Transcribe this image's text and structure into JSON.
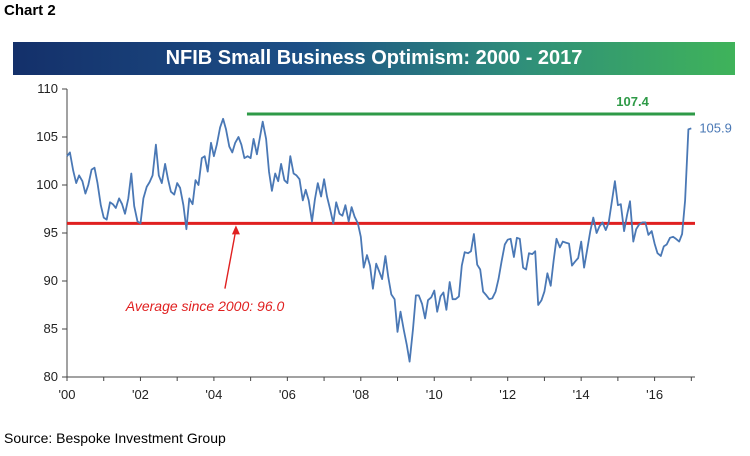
{
  "figure_label": "Chart 2",
  "source": "Source: Bespoke Investment Group",
  "chart_data": {
    "type": "line",
    "title": "NFIB Small Business Optimism: 2000 - 2017",
    "xlabel": "",
    "ylabel": "",
    "xlim": [
      2000,
      2017.1
    ],
    "ylim": [
      80,
      110
    ],
    "x_ticks": [
      {
        "value": 2000,
        "label": "'00"
      },
      {
        "value": 2002,
        "label": "'02"
      },
      {
        "value": 2004,
        "label": "'04"
      },
      {
        "value": 2006,
        "label": "'06"
      },
      {
        "value": 2008,
        "label": "'08"
      },
      {
        "value": 2010,
        "label": "'10"
      },
      {
        "value": 2012,
        "label": "'12"
      },
      {
        "value": 2014,
        "label": "'14"
      },
      {
        "value": 2016,
        "label": "'16"
      }
    ],
    "y_ticks": [
      80,
      85,
      90,
      95,
      100,
      105,
      110
    ],
    "colors": {
      "series": "#4a78b5",
      "average": "#e02020",
      "peak": "#2e9a47"
    },
    "series": [
      {
        "name": "NFIB Small Business Optimism Index",
        "points": [
          [
            2000.0,
            103.0
          ],
          [
            2000.08,
            103.4
          ],
          [
            2000.17,
            101.5
          ],
          [
            2000.25,
            100.2
          ],
          [
            2000.33,
            101.0
          ],
          [
            2000.42,
            100.4
          ],
          [
            2000.5,
            99.1
          ],
          [
            2000.58,
            100.0
          ],
          [
            2000.67,
            101.6
          ],
          [
            2000.75,
            101.8
          ],
          [
            2000.83,
            100.2
          ],
          [
            2000.92,
            97.9
          ],
          [
            2001.0,
            96.6
          ],
          [
            2001.08,
            96.4
          ],
          [
            2001.17,
            98.2
          ],
          [
            2001.25,
            98.0
          ],
          [
            2001.33,
            97.6
          ],
          [
            2001.42,
            98.6
          ],
          [
            2001.5,
            98.0
          ],
          [
            2001.58,
            97.0
          ],
          [
            2001.67,
            98.6
          ],
          [
            2001.75,
            101.2
          ],
          [
            2001.83,
            97.8
          ],
          [
            2001.92,
            96.2
          ],
          [
            2002.0,
            96.0
          ],
          [
            2002.08,
            98.6
          ],
          [
            2002.17,
            99.8
          ],
          [
            2002.25,
            100.3
          ],
          [
            2002.33,
            101.0
          ],
          [
            2002.42,
            104.2
          ],
          [
            2002.5,
            101.0
          ],
          [
            2002.58,
            100.2
          ],
          [
            2002.67,
            102.2
          ],
          [
            2002.75,
            100.6
          ],
          [
            2002.83,
            99.3
          ],
          [
            2002.92,
            99.0
          ],
          [
            2003.0,
            100.2
          ],
          [
            2003.08,
            99.7
          ],
          [
            2003.17,
            97.9
          ],
          [
            2003.25,
            95.4
          ],
          [
            2003.33,
            98.6
          ],
          [
            2003.42,
            98.0
          ],
          [
            2003.5,
            100.5
          ],
          [
            2003.58,
            100.0
          ],
          [
            2003.67,
            102.8
          ],
          [
            2003.75,
            103.0
          ],
          [
            2003.83,
            101.4
          ],
          [
            2003.92,
            104.4
          ],
          [
            2004.0,
            103.0
          ],
          [
            2004.08,
            104.2
          ],
          [
            2004.17,
            106.0
          ],
          [
            2004.25,
            106.9
          ],
          [
            2004.33,
            105.8
          ],
          [
            2004.42,
            104.0
          ],
          [
            2004.5,
            103.4
          ],
          [
            2004.58,
            104.4
          ],
          [
            2004.67,
            105.0
          ],
          [
            2004.75,
            104.2
          ],
          [
            2004.83,
            102.8
          ],
          [
            2004.92,
            103.0
          ],
          [
            2005.0,
            102.8
          ],
          [
            2005.08,
            104.8
          ],
          [
            2005.17,
            103.2
          ],
          [
            2005.25,
            104.9
          ],
          [
            2005.33,
            106.6
          ],
          [
            2005.42,
            104.8
          ],
          [
            2005.5,
            101.4
          ],
          [
            2005.58,
            99.4
          ],
          [
            2005.67,
            101.2
          ],
          [
            2005.75,
            100.4
          ],
          [
            2005.83,
            102.2
          ],
          [
            2005.92,
            100.5
          ],
          [
            2006.0,
            100.2
          ],
          [
            2006.08,
            103.0
          ],
          [
            2006.17,
            101.2
          ],
          [
            2006.25,
            101.0
          ],
          [
            2006.33,
            100.6
          ],
          [
            2006.42,
            98.4
          ],
          [
            2006.5,
            99.5
          ],
          [
            2006.58,
            98.4
          ],
          [
            2006.67,
            96.2
          ],
          [
            2006.75,
            98.5
          ],
          [
            2006.83,
            100.2
          ],
          [
            2006.92,
            98.8
          ],
          [
            2007.0,
            100.6
          ],
          [
            2007.08,
            98.8
          ],
          [
            2007.17,
            97.4
          ],
          [
            2007.25,
            96.0
          ],
          [
            2007.33,
            98.2
          ],
          [
            2007.42,
            97.0
          ],
          [
            2007.5,
            96.8
          ],
          [
            2007.58,
            97.9
          ],
          [
            2007.67,
            96.2
          ],
          [
            2007.75,
            97.7
          ],
          [
            2007.83,
            96.7
          ],
          [
            2007.92,
            96.0
          ],
          [
            2008.0,
            94.6
          ],
          [
            2008.08,
            91.4
          ],
          [
            2008.17,
            92.7
          ],
          [
            2008.25,
            91.6
          ],
          [
            2008.33,
            89.2
          ],
          [
            2008.42,
            91.8
          ],
          [
            2008.5,
            91.0
          ],
          [
            2008.58,
            90.2
          ],
          [
            2008.67,
            92.6
          ],
          [
            2008.75,
            90.4
          ],
          [
            2008.83,
            88.6
          ],
          [
            2008.92,
            88.1
          ],
          [
            2009.0,
            84.7
          ],
          [
            2009.08,
            86.8
          ],
          [
            2009.17,
            84.9
          ],
          [
            2009.25,
            83.4
          ],
          [
            2009.33,
            81.6
          ],
          [
            2009.42,
            85.0
          ],
          [
            2009.5,
            88.5
          ],
          [
            2009.58,
            88.5
          ],
          [
            2009.67,
            87.6
          ],
          [
            2009.75,
            86.1
          ],
          [
            2009.83,
            88.0
          ],
          [
            2009.92,
            88.3
          ],
          [
            2010.0,
            89.0
          ],
          [
            2010.08,
            86.8
          ],
          [
            2010.17,
            88.4
          ],
          [
            2010.25,
            88.8
          ],
          [
            2010.33,
            87.0
          ],
          [
            2010.42,
            89.9
          ],
          [
            2010.5,
            88.1
          ],
          [
            2010.58,
            88.1
          ],
          [
            2010.67,
            88.4
          ],
          [
            2010.75,
            91.6
          ],
          [
            2010.83,
            93.0
          ],
          [
            2010.92,
            92.9
          ],
          [
            2011.0,
            93.1
          ],
          [
            2011.08,
            94.9
          ],
          [
            2011.17,
            91.7
          ],
          [
            2011.25,
            91.2
          ],
          [
            2011.33,
            88.9
          ],
          [
            2011.42,
            88.5
          ],
          [
            2011.5,
            88.1
          ],
          [
            2011.58,
            88.2
          ],
          [
            2011.67,
            88.9
          ],
          [
            2011.75,
            90.2
          ],
          [
            2011.83,
            92.0
          ],
          [
            2011.92,
            93.8
          ],
          [
            2012.0,
            94.3
          ],
          [
            2012.08,
            94.4
          ],
          [
            2012.17,
            92.5
          ],
          [
            2012.25,
            94.5
          ],
          [
            2012.33,
            94.4
          ],
          [
            2012.42,
            91.4
          ],
          [
            2012.5,
            91.2
          ],
          [
            2012.58,
            92.9
          ],
          [
            2012.67,
            92.8
          ],
          [
            2012.75,
            93.1
          ],
          [
            2012.83,
            87.5
          ],
          [
            2012.92,
            88.0
          ],
          [
            2013.0,
            88.9
          ],
          [
            2013.08,
            90.8
          ],
          [
            2013.17,
            89.5
          ],
          [
            2013.25,
            92.1
          ],
          [
            2013.33,
            94.4
          ],
          [
            2013.42,
            93.5
          ],
          [
            2013.5,
            94.1
          ],
          [
            2013.58,
            94.0
          ],
          [
            2013.67,
            93.9
          ],
          [
            2013.75,
            91.6
          ],
          [
            2013.83,
            92.0
          ],
          [
            2013.92,
            92.4
          ],
          [
            2014.0,
            94.1
          ],
          [
            2014.08,
            91.4
          ],
          [
            2014.17,
            93.4
          ],
          [
            2014.25,
            95.2
          ],
          [
            2014.33,
            96.6
          ],
          [
            2014.42,
            95.0
          ],
          [
            2014.5,
            95.7
          ],
          [
            2014.58,
            96.1
          ],
          [
            2014.67,
            95.3
          ],
          [
            2014.75,
            96.1
          ],
          [
            2014.83,
            98.1
          ],
          [
            2014.92,
            100.4
          ],
          [
            2015.0,
            97.9
          ],
          [
            2015.08,
            98.0
          ],
          [
            2015.17,
            95.2
          ],
          [
            2015.25,
            96.9
          ],
          [
            2015.33,
            98.3
          ],
          [
            2015.42,
            94.1
          ],
          [
            2015.5,
            95.4
          ],
          [
            2015.58,
            95.9
          ],
          [
            2015.67,
            96.1
          ],
          [
            2015.75,
            96.1
          ],
          [
            2015.83,
            94.8
          ],
          [
            2015.92,
            95.2
          ],
          [
            2016.0,
            93.9
          ],
          [
            2016.08,
            92.9
          ],
          [
            2016.17,
            92.6
          ],
          [
            2016.25,
            93.6
          ],
          [
            2016.33,
            93.8
          ],
          [
            2016.42,
            94.5
          ],
          [
            2016.5,
            94.6
          ],
          [
            2016.58,
            94.4
          ],
          [
            2016.67,
            94.1
          ],
          [
            2016.75,
            94.9
          ],
          [
            2016.83,
            98.4
          ],
          [
            2016.92,
            105.8
          ],
          [
            2017.0,
            105.9
          ]
        ]
      }
    ],
    "reference_lines": [
      {
        "name": "average",
        "value": 96.0,
        "label": "Average since 2000:  96.0",
        "x_start": 2000.0,
        "x_end": 2017.1
      },
      {
        "name": "peak",
        "value": 107.4,
        "label": "107.4",
        "x_start": 2004.9,
        "x_end": 2017.1
      }
    ],
    "annotations": [
      {
        "name": "last-value",
        "text": "105.9"
      }
    ]
  }
}
